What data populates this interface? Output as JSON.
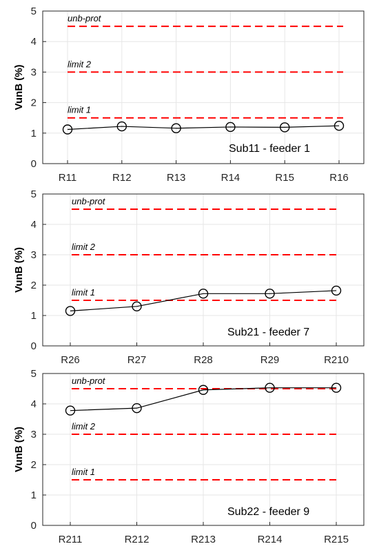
{
  "chart_data": [
    {
      "type": "line",
      "title": "Sub11 - feeder 1",
      "ylabel": "VunB (%)",
      "xlabel": "",
      "ylim": [
        0,
        5
      ],
      "yticks": [
        0,
        1,
        2,
        3,
        4,
        5
      ],
      "grid": true,
      "categories": [
        "R11",
        "R12",
        "R13",
        "R14",
        "R15",
        "R16"
      ],
      "series": [
        {
          "values": [
            1.12,
            1.22,
            1.16,
            1.2,
            1.19,
            1.24
          ],
          "color": "#000000",
          "marker": "circle-open"
        }
      ],
      "reference_lines": [
        {
          "label": "unb-prot",
          "value": 4.5,
          "color": "#ff0000"
        },
        {
          "label": "limit 2",
          "value": 3.0,
          "color": "#ff0000"
        },
        {
          "label": "limit 1",
          "value": 1.5,
          "color": "#ff0000"
        }
      ]
    },
    {
      "type": "line",
      "title": "Sub21 - feeder 7",
      "ylabel": "VunB (%)",
      "xlabel": "",
      "ylim": [
        0,
        5
      ],
      "yticks": [
        0,
        1,
        2,
        3,
        4,
        5
      ],
      "grid": true,
      "categories": [
        "R26",
        "R27",
        "R28",
        "R29",
        "R210"
      ],
      "series": [
        {
          "values": [
            1.15,
            1.3,
            1.72,
            1.72,
            1.82
          ],
          "color": "#000000",
          "marker": "circle-open"
        }
      ],
      "reference_lines": [
        {
          "label": "unb-prot",
          "value": 4.5,
          "color": "#ff0000"
        },
        {
          "label": "limit 2",
          "value": 3.0,
          "color": "#ff0000"
        },
        {
          "label": "limit 1",
          "value": 1.5,
          "color": "#ff0000"
        }
      ]
    },
    {
      "type": "line",
      "title": "Sub22 - feeder 9",
      "ylabel": "VunB (%)",
      "xlabel": "",
      "ylim": [
        0,
        5
      ],
      "yticks": [
        0,
        1,
        2,
        3,
        4,
        5
      ],
      "grid": true,
      "categories": [
        "R211",
        "R212",
        "R213",
        "R214",
        "R215"
      ],
      "series": [
        {
          "values": [
            3.78,
            3.86,
            4.46,
            4.53,
            4.53
          ],
          "color": "#000000",
          "marker": "circle-open"
        }
      ],
      "reference_lines": [
        {
          "label": "unb-prot",
          "value": 4.5,
          "color": "#ff0000"
        },
        {
          "label": "limit 2",
          "value": 3.0,
          "color": "#ff0000"
        },
        {
          "label": "limit 1",
          "value": 1.5,
          "color": "#ff0000"
        }
      ]
    }
  ]
}
